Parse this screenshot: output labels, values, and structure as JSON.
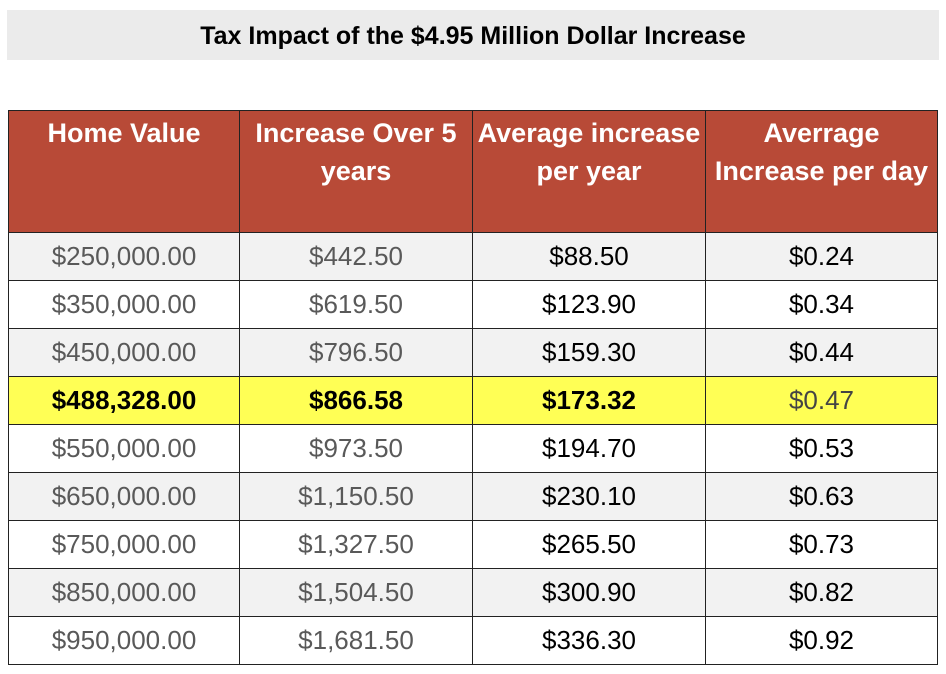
{
  "title": "Tax Impact of the $4.95 Million Dollar Increase",
  "columns": [
    "Home Value",
    "Increase Over 5 years",
    "Average increase per year",
    "Averrage Increase per day"
  ],
  "highlight_color": "#ffff55",
  "header_color": "#b84a37",
  "rows": [
    [
      "$250,000.00",
      "$442.50",
      "$88.50",
      "$0.24"
    ],
    [
      "$350,000.00",
      "$619.50",
      "$123.90",
      "$0.34"
    ],
    [
      "$450,000.00",
      "$796.50",
      "$159.30",
      "$0.44"
    ],
    [
      "$488,328.00",
      "$866.58",
      "$173.32",
      "$0.47"
    ],
    [
      "$550,000.00",
      "$973.50",
      "$194.70",
      "$0.53"
    ],
    [
      "$650,000.00",
      "$1,150.50",
      "$230.10",
      "$0.63"
    ],
    [
      "$750,000.00",
      "$1,327.50",
      "$265.50",
      "$0.73"
    ],
    [
      "$850,000.00",
      "$1,504.50",
      "$300.90",
      "$0.82"
    ],
    [
      "$950,000.00",
      "$1,681.50",
      "$336.30",
      "$0.92"
    ]
  ]
}
